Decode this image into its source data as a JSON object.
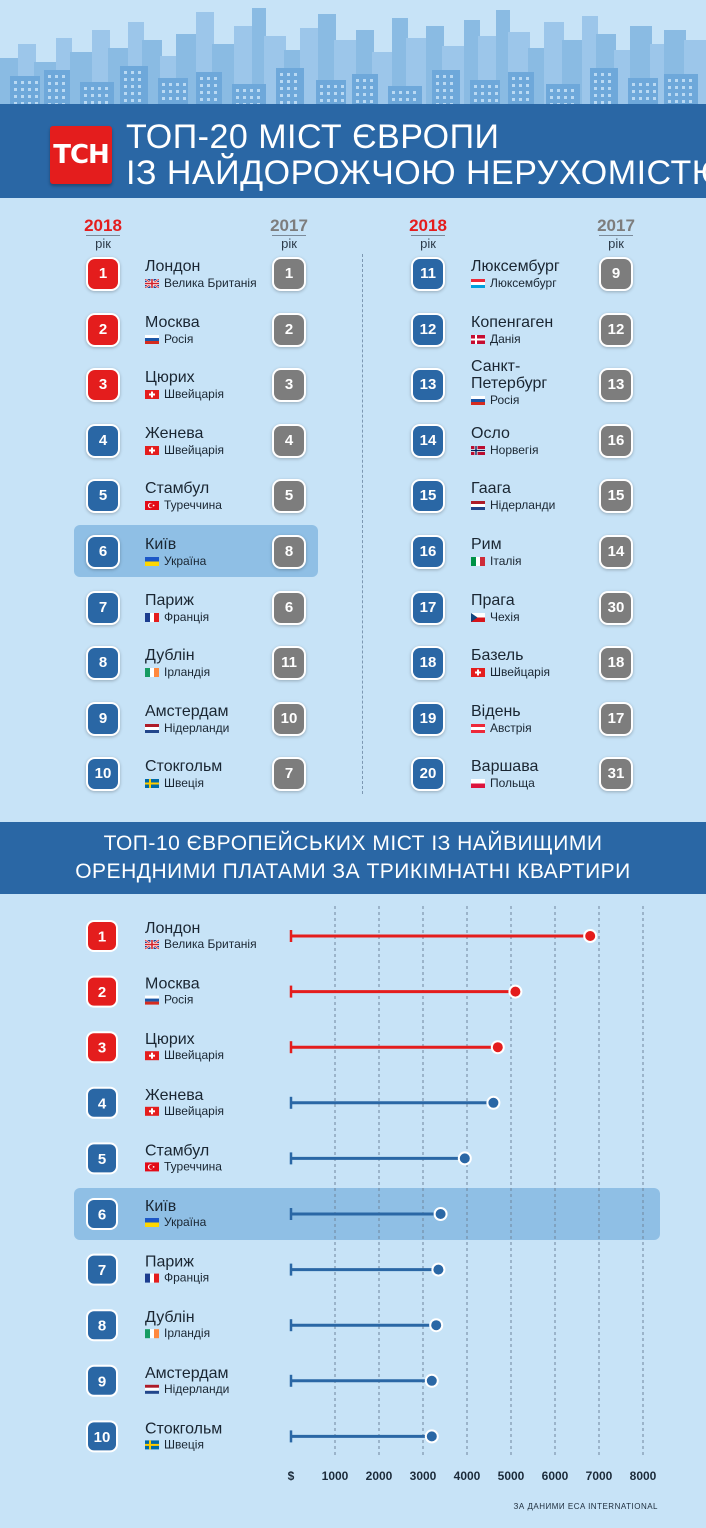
{
  "logo_text": "ТСН",
  "header": {
    "title_line1": "ТОП-20 МІСТ ЄВРОПИ",
    "title_line2": "ІЗ НАЙДОРОЖЧОЮ НЕРУХОМІСТЮ"
  },
  "years": {
    "y2018": "2018",
    "y2017": "2017",
    "suffix": "рік"
  },
  "top20": [
    {
      "r2018": "1",
      "city": "Лондон",
      "country": "Велика Британія",
      "flag": "gb",
      "r2017": "1"
    },
    {
      "r2018": "2",
      "city": "Москва",
      "country": "Росія",
      "flag": "ru",
      "r2017": "2"
    },
    {
      "r2018": "3",
      "city": "Цюрих",
      "country": "Швейцарія",
      "flag": "ch",
      "r2017": "3"
    },
    {
      "r2018": "4",
      "city": "Женева",
      "country": "Швейцарія",
      "flag": "ch",
      "r2017": "4"
    },
    {
      "r2018": "5",
      "city": "Стамбул",
      "country": "Туреччина",
      "flag": "tr",
      "r2017": "5"
    },
    {
      "r2018": "6",
      "city": "Київ",
      "country": "Україна",
      "flag": "ua",
      "r2017": "8"
    },
    {
      "r2018": "7",
      "city": "Париж",
      "country": "Франція",
      "flag": "fr",
      "r2017": "6"
    },
    {
      "r2018": "8",
      "city": "Дублін",
      "country": "Ірландія",
      "flag": "ie",
      "r2017": "11"
    },
    {
      "r2018": "9",
      "city": "Амстердам",
      "country": "Нідерланди",
      "flag": "nl",
      "r2017": "10"
    },
    {
      "r2018": "10",
      "city": "Стокгольм",
      "country": "Швеція",
      "flag": "se",
      "r2017": "7"
    },
    {
      "r2018": "11",
      "city": "Люксембург",
      "country": "Люксембург",
      "flag": "lu",
      "r2017": "9"
    },
    {
      "r2018": "12",
      "city": "Копенгаген",
      "country": "Данія",
      "flag": "dk",
      "r2017": "12"
    },
    {
      "r2018": "13",
      "city": "Санкт-\nПетербург",
      "country": "Росія",
      "flag": "ru",
      "r2017": "13"
    },
    {
      "r2018": "14",
      "city": "Осло",
      "country": "Норвегія",
      "flag": "no",
      "r2017": "16"
    },
    {
      "r2018": "15",
      "city": "Гаага",
      "country": "Нідерланди",
      "flag": "nl",
      "r2017": "15"
    },
    {
      "r2018": "16",
      "city": "Рим",
      "country": "Італія",
      "flag": "it",
      "r2017": "14"
    },
    {
      "r2018": "17",
      "city": "Прага",
      "country": "Чехія",
      "flag": "cz",
      "r2017": "30"
    },
    {
      "r2018": "18",
      "city": "Базель",
      "country": "Швейцарія",
      "flag": "ch",
      "r2017": "18"
    },
    {
      "r2018": "19",
      "city": "Відень",
      "country": "Австрія",
      "flag": "at",
      "r2017": "17"
    },
    {
      "r2018": "20",
      "city": "Варшава",
      "country": "Польща",
      "flag": "pl",
      "r2017": "31"
    }
  ],
  "header2": {
    "line1": "ТОП-10 ЄВРОПЕЙСЬКИХ МІСТ ІЗ НАЙВИЩИМИ",
    "line2": "ОРЕНДНИМИ ПЛАТАМИ ЗА ТРИКІМНАТНІ КВАРТИРИ"
  },
  "chart_data": {
    "type": "bar",
    "title": "ТОП-10 ЄВРОПЕЙСЬКИХ МІСТ ІЗ НАЙВИЩИМИ ОРЕНДНИМИ ПЛАТАМИ ЗА ТРИКІМНАТНІ КВАРТИРИ",
    "orientation": "horizontal-lollipop",
    "xlim": [
      0,
      8000
    ],
    "x_ticks": [
      "$",
      "1000",
      "2000",
      "3000",
      "4000",
      "5000",
      "6000",
      "7000",
      "8000"
    ],
    "grid": "vertical-dashed",
    "categories": [
      "Лондон",
      "Москва",
      "Цюрих",
      "Женева",
      "Стамбул",
      "Київ",
      "Париж",
      "Дублін",
      "Амстердам",
      "Стокгольм"
    ],
    "countries": [
      "Велика Британія",
      "Росія",
      "Швейцарія",
      "Швейцарія",
      "Туреччина",
      "Україна",
      "Франція",
      "Ірландія",
      "Нідерланди",
      "Швеція"
    ],
    "flags": [
      "gb",
      "ru",
      "ch",
      "ch",
      "tr",
      "ua",
      "fr",
      "ie",
      "nl",
      "se"
    ],
    "ranks": [
      "1",
      "2",
      "3",
      "4",
      "5",
      "6",
      "7",
      "8",
      "9",
      "10"
    ],
    "values": [
      6800,
      5100,
      4700,
      4600,
      3950,
      3400,
      3350,
      3300,
      3200,
      3200
    ],
    "highlight_category": "Київ",
    "colors": {
      "top3": "#e41d1d",
      "rest": "#2a67a5"
    }
  },
  "source": "ЗА ДАНИМИ ECA INTERNATIONAL",
  "colors": {
    "red": "#e41d1d",
    "blue": "#2a67a5",
    "grey": "#7d7d7d",
    "background": "#c7e3f7"
  }
}
